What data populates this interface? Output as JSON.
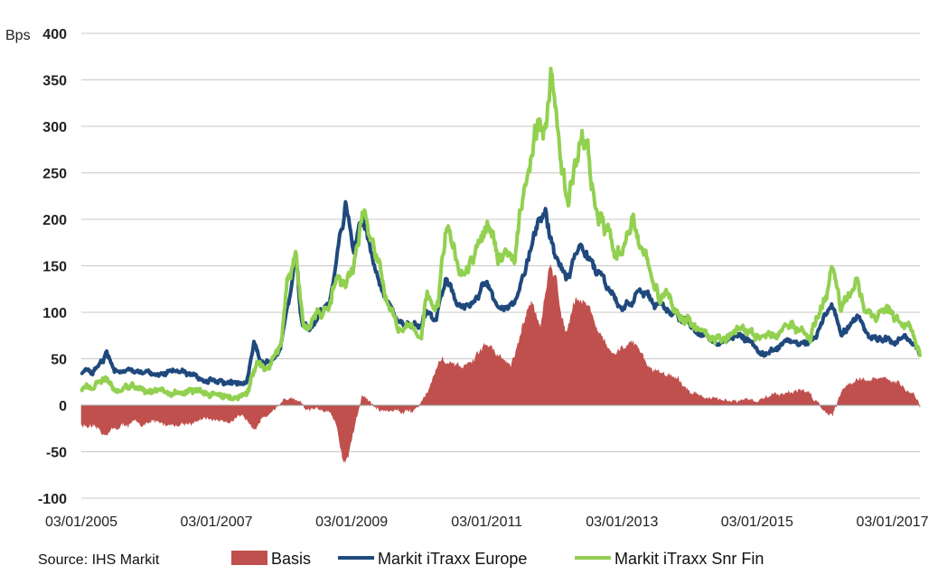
{
  "source": "Source: IHS Markit",
  "colors": {
    "basis": "#c0504d",
    "europe": "#1f497d",
    "snrfin": "#92d050",
    "grid": "#c8c8c8"
  },
  "chart_data": {
    "type": "line",
    "ylabel": "Bps",
    "ylim": [
      -100,
      400
    ],
    "yticks": [
      "-100",
      "-50",
      "0",
      "50",
      "100",
      "150",
      "200",
      "250",
      "300",
      "350",
      "400"
    ],
    "xlim": [
      "2005-01-03",
      "2017-06-01"
    ],
    "xticks": [
      "03/01/2005",
      "03/01/2007",
      "03/01/2009",
      "03/01/2011",
      "03/01/2013",
      "03/01/2015",
      "03/01/2017"
    ],
    "grid": "horizontal",
    "legend": "bottom",
    "series": [
      {
        "name": "Markit iTraxx Europe",
        "kind": "line",
        "points": [
          [
            "2005-01-03",
            38
          ],
          [
            "2005-03-01",
            33
          ],
          [
            "2005-05-01",
            48
          ],
          [
            "2005-05-20",
            58
          ],
          [
            "2005-07-01",
            40
          ],
          [
            "2005-10-01",
            38
          ],
          [
            "2006-01-01",
            37
          ],
          [
            "2006-06-01",
            36
          ],
          [
            "2006-09-01",
            31
          ],
          [
            "2006-12-01",
            27
          ],
          [
            "2007-04-01",
            24
          ],
          [
            "2007-06-15",
            24
          ],
          [
            "2007-07-25",
            65
          ],
          [
            "2007-09-01",
            50
          ],
          [
            "2007-11-01",
            55
          ],
          [
            "2007-12-15",
            60
          ],
          [
            "2008-01-20",
            110
          ],
          [
            "2008-03-10",
            155
          ],
          [
            "2008-04-01",
            95
          ],
          [
            "2008-05-15",
            75
          ],
          [
            "2008-07-01",
            95
          ],
          [
            "2008-09-01",
            110
          ],
          [
            "2008-10-15",
            165
          ],
          [
            "2008-12-01",
            215
          ],
          [
            "2009-01-15",
            170
          ],
          [
            "2009-03-10",
            200
          ],
          [
            "2009-05-01",
            150
          ],
          [
            "2009-07-01",
            120
          ],
          [
            "2009-09-01",
            95
          ],
          [
            "2009-12-01",
            85
          ],
          [
            "2010-01-15",
            80
          ],
          [
            "2010-02-15",
            100
          ],
          [
            "2010-04-01",
            85
          ],
          [
            "2010-05-25",
            135
          ],
          [
            "2010-07-01",
            120
          ],
          [
            "2010-09-01",
            105
          ],
          [
            "2010-11-15",
            115
          ],
          [
            "2011-01-01",
            130
          ],
          [
            "2011-03-01",
            105
          ],
          [
            "2011-06-01",
            110
          ],
          [
            "2011-08-01",
            150
          ],
          [
            "2011-10-05",
            195
          ],
          [
            "2011-11-20",
            200
          ],
          [
            "2012-01-01",
            165
          ],
          [
            "2012-03-10",
            130
          ],
          [
            "2012-06-01",
            175
          ],
          [
            "2012-08-01",
            145
          ],
          [
            "2012-10-01",
            125
          ],
          [
            "2013-01-01",
            105
          ],
          [
            "2013-04-01",
            120
          ],
          [
            "2013-06-20",
            110
          ],
          [
            "2013-09-01",
            100
          ],
          [
            "2013-12-01",
            90
          ],
          [
            "2014-03-01",
            80
          ],
          [
            "2014-06-01",
            65
          ],
          [
            "2014-08-10",
            75
          ],
          [
            "2014-10-20",
            80
          ],
          [
            "2015-01-01",
            60
          ],
          [
            "2015-03-01",
            55
          ],
          [
            "2015-06-30",
            70
          ],
          [
            "2015-09-01",
            65
          ],
          [
            "2015-11-01",
            70
          ],
          [
            "2016-02-10",
            110
          ],
          [
            "2016-04-01",
            75
          ],
          [
            "2016-06-27",
            95
          ],
          [
            "2016-09-01",
            75
          ],
          [
            "2016-12-01",
            70
          ],
          [
            "2017-03-01",
            72
          ],
          [
            "2017-05-01",
            62
          ],
          [
            "2017-06-01",
            55
          ]
        ]
      },
      {
        "name": "Markit iTraxx Snr Fin",
        "kind": "line",
        "points": [
          [
            "2005-01-03",
            18
          ],
          [
            "2005-03-01",
            17
          ],
          [
            "2005-05-15",
            27
          ],
          [
            "2005-07-01",
            20
          ],
          [
            "2005-12-01",
            18
          ],
          [
            "2006-06-01",
            15
          ],
          [
            "2006-12-01",
            12
          ],
          [
            "2007-04-01",
            8
          ],
          [
            "2007-06-15",
            9
          ],
          [
            "2007-08-10",
            45
          ],
          [
            "2007-10-01",
            40
          ],
          [
            "2007-12-20",
            70
          ],
          [
            "2008-01-20",
            125
          ],
          [
            "2008-03-10",
            160
          ],
          [
            "2008-04-20",
            85
          ],
          [
            "2008-06-15",
            90
          ],
          [
            "2008-09-15",
            110
          ],
          [
            "2008-10-20",
            145
          ],
          [
            "2008-12-01",
            130
          ],
          [
            "2009-01-10",
            150
          ],
          [
            "2009-03-05",
            210
          ],
          [
            "2009-04-15",
            170
          ],
          [
            "2009-06-01",
            140
          ],
          [
            "2009-09-01",
            90
          ],
          [
            "2009-12-01",
            80
          ],
          [
            "2010-01-15",
            75
          ],
          [
            "2010-02-15",
            115
          ],
          [
            "2010-04-15",
            105
          ],
          [
            "2010-06-01",
            205
          ],
          [
            "2010-07-15",
            160
          ],
          [
            "2010-09-01",
            145
          ],
          [
            "2010-11-30",
            175
          ],
          [
            "2011-01-10",
            195
          ],
          [
            "2011-03-01",
            160
          ],
          [
            "2011-06-01",
            165
          ],
          [
            "2011-07-20",
            230
          ],
          [
            "2011-09-20",
            310
          ],
          [
            "2011-11-20",
            300
          ],
          [
            "2011-12-15",
            350
          ],
          [
            "2012-01-15",
            300
          ],
          [
            "2012-03-15",
            210
          ],
          [
            "2012-06-01",
            305
          ],
          [
            "2012-07-10",
            260
          ],
          [
            "2012-09-10",
            200
          ],
          [
            "2012-12-01",
            160
          ],
          [
            "2013-03-01",
            200
          ],
          [
            "2013-06-01",
            150
          ],
          [
            "2013-07-20",
            120
          ],
          [
            "2013-10-01",
            110
          ],
          [
            "2014-01-15",
            90
          ],
          [
            "2014-04-01",
            80
          ],
          [
            "2014-06-20",
            70
          ],
          [
            "2014-10-15",
            85
          ],
          [
            "2015-01-01",
            75
          ],
          [
            "2015-03-15",
            70
          ],
          [
            "2015-06-30",
            90
          ],
          [
            "2015-09-01",
            80
          ],
          [
            "2015-11-15",
            85
          ],
          [
            "2016-02-10",
            140
          ],
          [
            "2016-04-01",
            95
          ],
          [
            "2016-06-27",
            135
          ],
          [
            "2016-08-01",
            100
          ],
          [
            "2016-10-15",
            105
          ],
          [
            "2017-01-01",
            95
          ],
          [
            "2017-04-01",
            90
          ],
          [
            "2017-06-01",
            52
          ]
        ]
      },
      {
        "name": "Basis",
        "kind": "area",
        "points": [
          [
            "2005-01-03",
            -20
          ],
          [
            "2005-05-01",
            -30
          ],
          [
            "2005-09-01",
            -20
          ],
          [
            "2006-01-01",
            -19
          ],
          [
            "2006-06-01",
            -20
          ],
          [
            "2006-09-01",
            -17
          ],
          [
            "2006-12-01",
            -15
          ],
          [
            "2007-04-01",
            -15
          ],
          [
            "2007-06-15",
            -15
          ],
          [
            "2007-08-01",
            -20
          ],
          [
            "2007-10-01",
            -10
          ],
          [
            "2008-01-01",
            5
          ],
          [
            "2008-03-01",
            5
          ],
          [
            "2008-05-01",
            -5
          ],
          [
            "2008-07-01",
            -5
          ],
          [
            "2008-09-01",
            -3
          ],
          [
            "2008-10-15",
            -20
          ],
          [
            "2008-11-15",
            -60
          ],
          [
            "2008-12-15",
            -55
          ],
          [
            "2009-01-15",
            -25
          ],
          [
            "2009-03-01",
            10
          ],
          [
            "2009-06-01",
            -5
          ],
          [
            "2009-09-01",
            -5
          ],
          [
            "2009-12-01",
            -5
          ],
          [
            "2010-01-01",
            0
          ],
          [
            "2010-03-01",
            20
          ],
          [
            "2010-05-01",
            50
          ],
          [
            "2010-07-01",
            40
          ],
          [
            "2010-09-01",
            40
          ],
          [
            "2010-11-01",
            50
          ],
          [
            "2011-01-01",
            65
          ],
          [
            "2011-03-01",
            55
          ],
          [
            "2011-05-15",
            40
          ],
          [
            "2011-07-01",
            70
          ],
          [
            "2011-09-01",
            110
          ],
          [
            "2011-10-20",
            90
          ],
          [
            "2011-12-10",
            145
          ],
          [
            "2012-01-15",
            130
          ],
          [
            "2012-03-01",
            80
          ],
          [
            "2012-05-01",
            120
          ],
          [
            "2012-07-01",
            110
          ],
          [
            "2012-09-15",
            70
          ],
          [
            "2012-12-01",
            50
          ],
          [
            "2013-03-01",
            70
          ],
          [
            "2013-06-01",
            40
          ],
          [
            "2013-09-01",
            35
          ],
          [
            "2013-12-01",
            20
          ],
          [
            "2014-03-01",
            10
          ],
          [
            "2014-06-01",
            5
          ],
          [
            "2014-09-01",
            3
          ],
          [
            "2015-01-01",
            5
          ],
          [
            "2015-03-01",
            10
          ],
          [
            "2015-07-01",
            15
          ],
          [
            "2015-10-01",
            15
          ],
          [
            "2016-01-01",
            -5
          ],
          [
            "2016-02-15",
            -8
          ],
          [
            "2016-04-01",
            15
          ],
          [
            "2016-06-27",
            30
          ],
          [
            "2016-09-01",
            25
          ],
          [
            "2016-12-01",
            28
          ],
          [
            "2017-03-01",
            20
          ],
          [
            "2017-05-15",
            8
          ],
          [
            "2017-06-01",
            -2
          ]
        ]
      }
    ],
    "legend_items": [
      {
        "label": "Basis",
        "key": "basis"
      },
      {
        "label": "Markit iTraxx Europe",
        "key": "europe"
      },
      {
        "label": "Markit iTraxx Snr Fin",
        "key": "snrfin"
      }
    ]
  }
}
